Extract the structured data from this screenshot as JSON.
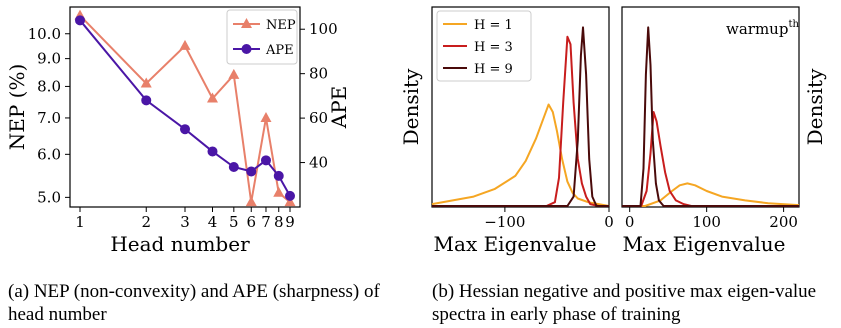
{
  "captions": {
    "a": "(a) NEP (non-convexity) and APE (sharpness) of head number",
    "b": "(b) Hessian negative and positive max eigen-value spectra in early phase of training"
  },
  "chart_data": [
    {
      "type": "line",
      "xlabel": "Head number",
      "ylabel": "NEP (%)",
      "y2label": "APE",
      "x": [
        1,
        2,
        3,
        4,
        5,
        6,
        7,
        8,
        9
      ],
      "x_scale": "log",
      "xticks": [
        "1",
        "2",
        "3",
        "4",
        "5",
        "6",
        "7",
        "8",
        "9"
      ],
      "ylim": [
        4.8,
        11.2
      ],
      "y_scale": "log",
      "yticks": [
        "5.0",
        "6.0",
        "7.0",
        "8.0",
        "9.0",
        "10.0"
      ],
      "y2lim": [
        20,
        110
      ],
      "y2ticks": [
        "40",
        "60",
        "80",
        "100"
      ],
      "legend_position": "top-right",
      "series": [
        {
          "name": "NEP",
          "axis": "left",
          "marker": "triangle",
          "color": "#e8806a",
          "values": [
            10.8,
            8.1,
            9.5,
            7.6,
            8.4,
            4.9,
            7.0,
            5.1,
            4.9
          ]
        },
        {
          "name": "APE",
          "axis": "right",
          "marker": "circle",
          "color": "#4a16a6",
          "values": [
            104,
            68,
            55,
            45,
            38,
            36,
            41,
            34,
            25
          ]
        }
      ]
    },
    {
      "type": "line",
      "subtype": "density",
      "xlabel": "Max Eigenvalue",
      "ylabel": "Density",
      "xlim": [
        -170,
        0
      ],
      "xticks": [
        "−100",
        "0"
      ],
      "xtick_values": [
        -100,
        0
      ],
      "legend_position": "top-left",
      "series": [
        {
          "name": "H = 1",
          "color": "#f5a623",
          "x": [
            -170,
            -150,
            -130,
            -110,
            -90,
            -80,
            -70,
            -62,
            -58,
            -54,
            -50,
            -45,
            -40,
            -35,
            -30,
            -20,
            -10,
            0
          ],
          "y": [
            0.01,
            0.03,
            0.05,
            0.09,
            0.16,
            0.24,
            0.36,
            0.48,
            0.54,
            0.5,
            0.4,
            0.25,
            0.13,
            0.07,
            0.04,
            0.02,
            0.01,
            0.0
          ]
        },
        {
          "name": "H = 3",
          "color": "#c81d1d",
          "x": [
            -170,
            -60,
            -52,
            -48,
            -44,
            -40,
            -37,
            -34,
            -30,
            -26,
            -22,
            -18,
            -10,
            0
          ],
          "y": [
            0.0,
            0.0,
            0.02,
            0.15,
            0.55,
            0.9,
            0.86,
            0.55,
            0.25,
            0.12,
            0.05,
            0.01,
            0.0,
            0.0
          ]
        },
        {
          "name": "H = 9",
          "color": "#4a0a0a",
          "x": [
            -170,
            -40,
            -34,
            -30,
            -27,
            -25,
            -22,
            -19,
            -16,
            -12,
            0
          ],
          "y": [
            0.0,
            0.0,
            0.05,
            0.35,
            0.8,
            0.95,
            0.7,
            0.25,
            0.05,
            0.0,
            0.0
          ]
        }
      ]
    },
    {
      "type": "line",
      "subtype": "density",
      "title": "warmup",
      "title_superscript": "th",
      "xlabel": "Max Eigenvalue",
      "ylabel": "Density",
      "xlim": [
        -10,
        220
      ],
      "xticks": [
        "0",
        "100",
        "200"
      ],
      "xtick_values": [
        0,
        100,
        200
      ],
      "series": [
        {
          "name": "H = 1",
          "color": "#f5a623",
          "x": [
            -10,
            20,
            40,
            55,
            65,
            75,
            85,
            100,
            120,
            150,
            180,
            220
          ],
          "y": [
            0.0,
            0.0,
            0.03,
            0.08,
            0.11,
            0.12,
            0.11,
            0.08,
            0.05,
            0.03,
            0.015,
            0.005
          ]
        },
        {
          "name": "H = 3",
          "color": "#c81d1d",
          "x": [
            -10,
            15,
            22,
            27,
            31,
            35,
            40,
            46,
            52,
            60,
            70,
            80,
            220
          ],
          "y": [
            0.0,
            0.0,
            0.08,
            0.28,
            0.5,
            0.45,
            0.32,
            0.18,
            0.08,
            0.03,
            0.01,
            0.0,
            0.0
          ]
        },
        {
          "name": "H = 9",
          "color": "#4a0a0a",
          "x": [
            -10,
            14,
            18,
            21,
            24,
            27,
            30,
            34,
            38,
            44,
            220
          ],
          "y": [
            0.0,
            0.0,
            0.2,
            0.7,
            0.95,
            0.75,
            0.35,
            0.12,
            0.03,
            0.0,
            0.0
          ]
        }
      ]
    }
  ]
}
